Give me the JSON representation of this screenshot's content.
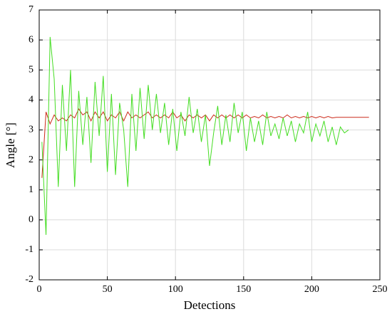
{
  "chart_data": {
    "type": "line",
    "xlabel": "Detections",
    "ylabel": "Angle [°]",
    "x": [
      2,
      5,
      8,
      11,
      14,
      17,
      20,
      23,
      26,
      29,
      32,
      35,
      38,
      41,
      44,
      47,
      50,
      53,
      56,
      59,
      62,
      65,
      68,
      71,
      74,
      77,
      80,
      83,
      86,
      89,
      92,
      95,
      98,
      101,
      104,
      107,
      110,
      113,
      116,
      119,
      122,
      125,
      128,
      131,
      134,
      137,
      140,
      143,
      146,
      149,
      152,
      155,
      158,
      161,
      164,
      167,
      170,
      173,
      176,
      179,
      182,
      185,
      188,
      191,
      194,
      197,
      200,
      203,
      206,
      209,
      212,
      215,
      218,
      221,
      224,
      227,
      230,
      233,
      236,
      239,
      242
    ],
    "series": [
      {
        "color": "#cc2a1a",
        "values": [
          1.4,
          3.6,
          3.2,
          3.5,
          3.3,
          3.4,
          3.3,
          3.5,
          3.4,
          3.7,
          3.5,
          3.6,
          3.3,
          3.6,
          3.4,
          3.6,
          3.3,
          3.5,
          3.4,
          3.6,
          3.3,
          3.6,
          3.4,
          3.5,
          3.4,
          3.5,
          3.6,
          3.4,
          3.5,
          3.4,
          3.5,
          3.4,
          3.6,
          3.4,
          3.5,
          3.3,
          3.5,
          3.4,
          3.5,
          3.4,
          3.5,
          3.3,
          3.5,
          3.4,
          3.5,
          3.4,
          3.5,
          3.4,
          3.5,
          3.4,
          3.5,
          3.4,
          3.45,
          3.4,
          3.5,
          3.4,
          3.45,
          3.4,
          3.45,
          3.4,
          3.5,
          3.4,
          3.45,
          3.4,
          3.45,
          3.4,
          3.45,
          3.4,
          3.45,
          3.4,
          3.45,
          3.4,
          3.42,
          3.42,
          3.42,
          3.42,
          3.42,
          3.42,
          3.42,
          3.42,
          3.42
        ]
      },
      {
        "color": "#44dd22",
        "values": [
          2.6,
          -0.5,
          6.1,
          4.7,
          1.1,
          4.5,
          2.3,
          5.0,
          1.1,
          4.3,
          2.5,
          4.1,
          1.9,
          4.6,
          2.8,
          4.8,
          1.6,
          4.2,
          1.5,
          3.9,
          3.0,
          1.1,
          4.2,
          2.3,
          4.4,
          2.7,
          4.5,
          3.0,
          4.2,
          2.9,
          3.9,
          2.5,
          3.7,
          2.3,
          3.6,
          2.8,
          4.1,
          2.9,
          3.7,
          2.6,
          3.5,
          1.8,
          2.9,
          3.8,
          2.5,
          3.5,
          2.6,
          3.9,
          2.9,
          3.6,
          2.3,
          3.4,
          2.6,
          3.3,
          2.5,
          3.6,
          2.8,
          3.2,
          2.7,
          3.4,
          2.8,
          3.3,
          2.6,
          3.2,
          2.9,
          3.6,
          2.6,
          3.2,
          2.8,
          3.3,
          2.6,
          3.1,
          2.5,
          3.1,
          2.9,
          3.0,
          null,
          null,
          null,
          null,
          null
        ]
      }
    ],
    "xlim": [
      0,
      250
    ],
    "xticks": [
      0,
      50,
      100,
      150,
      200,
      250
    ],
    "ylim": [
      -2,
      7
    ],
    "yticks": [
      -2,
      -1,
      0,
      1,
      2,
      3,
      4,
      5,
      6,
      7
    ],
    "yticks_labels": null,
    "grid": true
  }
}
